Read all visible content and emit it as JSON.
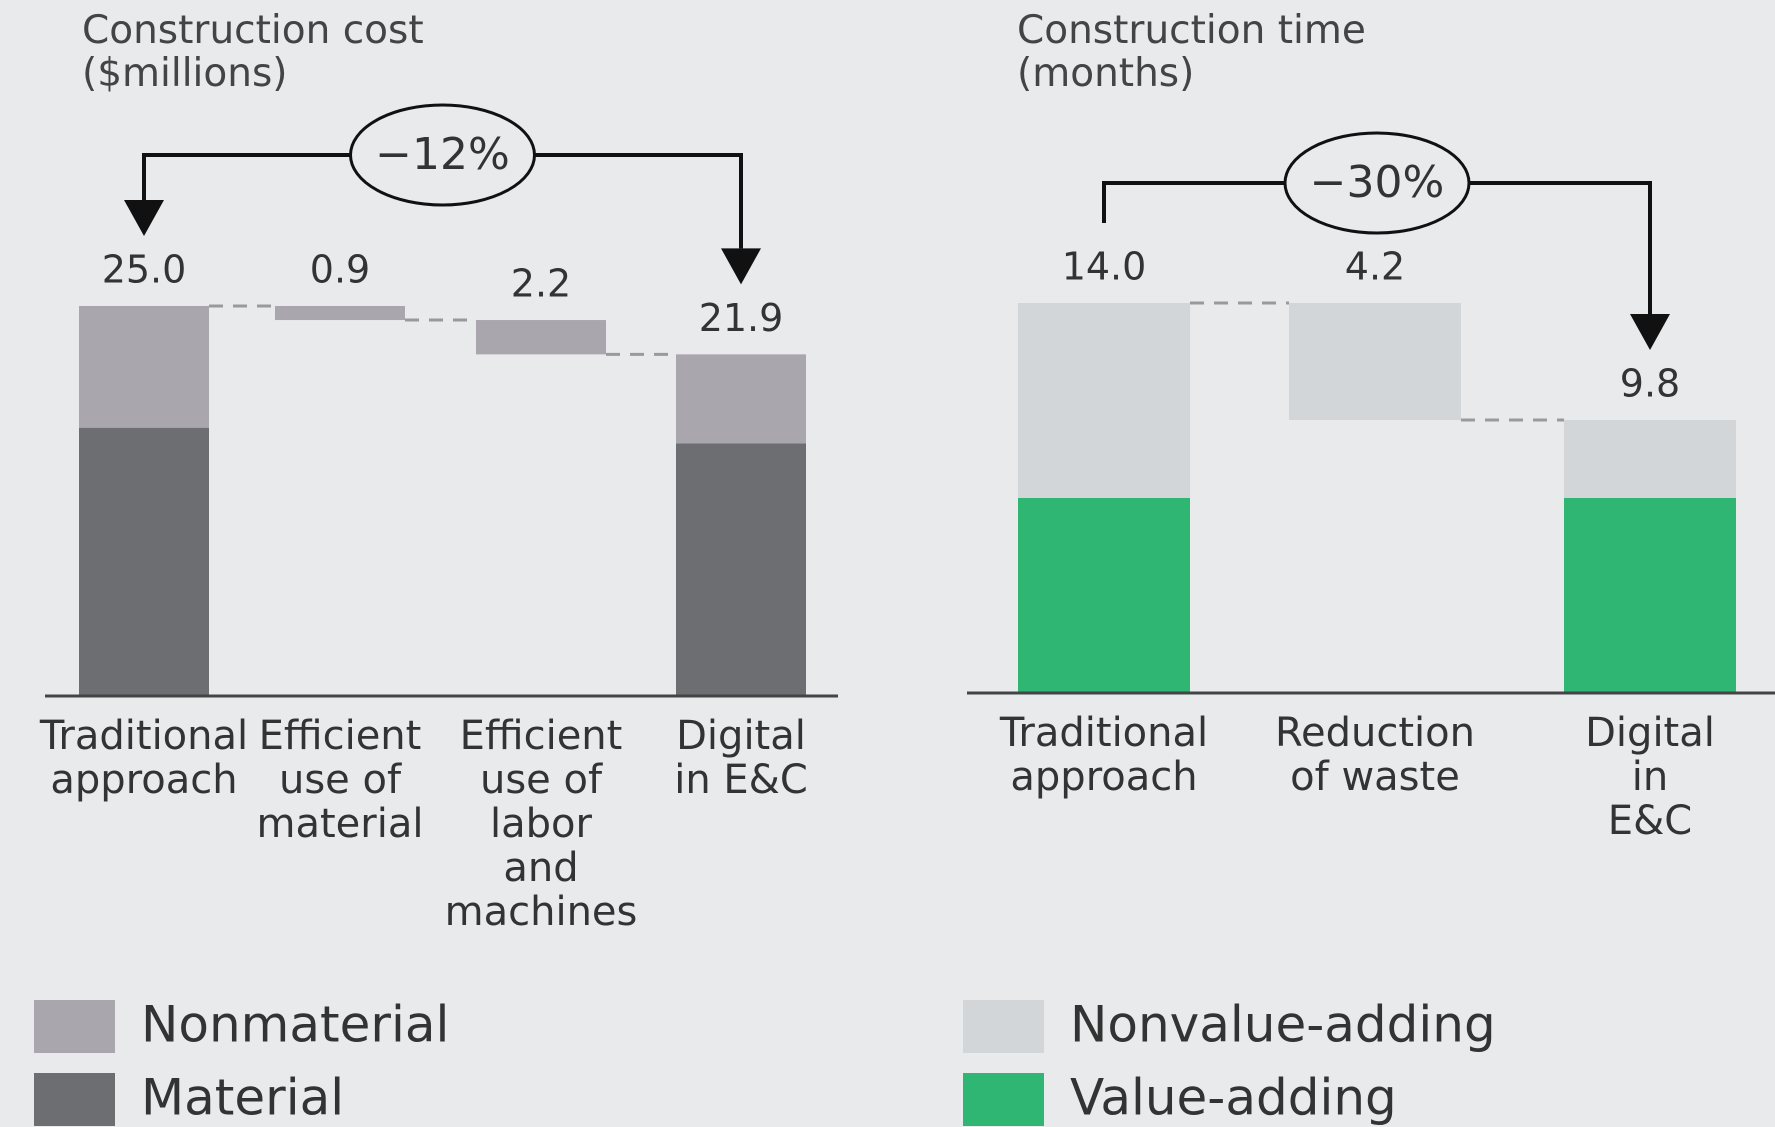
{
  "chart_data": [
    {
      "type": "waterfall",
      "title": "Construction cost\n($millions)",
      "categories": [
        "Traditional\napproach",
        "Efficient\nuse of\nmaterial",
        "Efficient\nuse of\nlabor\nand\nmachines",
        "Digital\nin E&C"
      ],
      "measure": [
        "total",
        "decrease",
        "decrease",
        "total"
      ],
      "values": [
        25.0,
        0.9,
        2.2,
        21.9
      ],
      "value_labels": [
        "25.0",
        "0.9",
        "2.2",
        "21.9"
      ],
      "decrease_color": "#aaa6ae",
      "series": [
        {
          "name": "Nonmaterial",
          "color": "#aaa6ae",
          "values": [
            7.8,
            null,
            null,
            5.7
          ]
        },
        {
          "name": "Material",
          "color": "#6d6e71",
          "values": [
            17.2,
            null,
            null,
            16.2
          ]
        }
      ],
      "ylim": [
        0,
        25
      ],
      "annotation": {
        "text": "−12%",
        "from": 0,
        "to": 3,
        "both_ends": true
      }
    },
    {
      "type": "waterfall",
      "title": "Construction time\n(months)",
      "categories": [
        "Traditional\napproach",
        "Reduction\nof waste",
        "Digital\nin E&C"
      ],
      "measure": [
        "total",
        "decrease",
        "total"
      ],
      "values": [
        14.0,
        4.2,
        9.8
      ],
      "value_labels": [
        "14.0",
        "4.2",
        "9.8"
      ],
      "decrease_color": "#d3d6d9",
      "series": [
        {
          "name": "Nonvalue-adding",
          "color": "#d3d6d9",
          "values": [
            7.0,
            null,
            2.8
          ]
        },
        {
          "name": "Value-adding",
          "color": "#2fb673",
          "values": [
            7.0,
            null,
            7.0
          ]
        }
      ],
      "ylim": [
        0,
        14
      ],
      "annotation": {
        "text": "−30%",
        "from": 0,
        "to": 2,
        "both_ends": false
      }
    }
  ]
}
